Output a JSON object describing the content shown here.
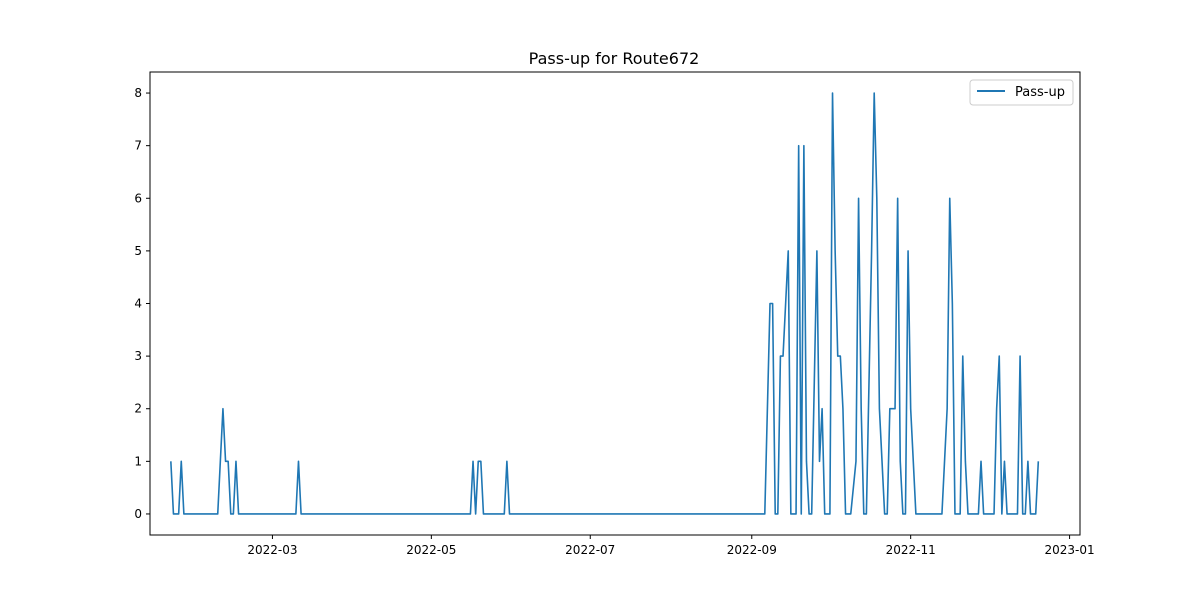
{
  "chart_data": {
    "type": "line",
    "title": "Pass-up for Route672",
    "xlabel": "",
    "ylabel": "",
    "x_axis_type": "date",
    "xlim": [
      "2022-01-13",
      "2023-01-05"
    ],
    "ylim": [
      -0.4,
      8.4
    ],
    "x_ticks": [
      "2022-03-01",
      "2022-05-01",
      "2022-07-01",
      "2022-09-01",
      "2022-11-01",
      "2023-01-01"
    ],
    "x_tick_labels": [
      "2022-03",
      "2022-05",
      "2022-07",
      "2022-09",
      "2022-11",
      "2023-01"
    ],
    "y_ticks": [
      0,
      1,
      2,
      3,
      4,
      5,
      6,
      7,
      8
    ],
    "grid": false,
    "legend": "upper right",
    "series": [
      {
        "name": "Pass-up",
        "color": "#1f77b4",
        "points": [
          [
            "2022-01-21",
            1
          ],
          [
            "2022-01-22",
            0
          ],
          [
            "2022-01-24",
            0
          ],
          [
            "2022-01-25",
            1
          ],
          [
            "2022-01-26",
            0
          ],
          [
            "2022-02-08",
            0
          ],
          [
            "2022-02-10",
            2
          ],
          [
            "2022-02-11",
            1
          ],
          [
            "2022-02-12",
            1
          ],
          [
            "2022-02-13",
            0
          ],
          [
            "2022-02-14",
            0
          ],
          [
            "2022-02-15",
            1
          ],
          [
            "2022-02-16",
            0
          ],
          [
            "2022-03-10",
            0
          ],
          [
            "2022-03-11",
            1
          ],
          [
            "2022-03-12",
            0
          ],
          [
            "2022-05-16",
            0
          ],
          [
            "2022-05-17",
            1
          ],
          [
            "2022-05-18",
            0
          ],
          [
            "2022-05-19",
            1
          ],
          [
            "2022-05-20",
            1
          ],
          [
            "2022-05-21",
            0
          ],
          [
            "2022-05-29",
            0
          ],
          [
            "2022-05-30",
            1
          ],
          [
            "2022-05-31",
            0
          ],
          [
            "2022-09-06",
            0
          ],
          [
            "2022-09-08",
            4
          ],
          [
            "2022-09-09",
            4
          ],
          [
            "2022-09-10",
            0
          ],
          [
            "2022-09-11",
            0
          ],
          [
            "2022-09-12",
            3
          ],
          [
            "2022-09-13",
            3
          ],
          [
            "2022-09-14",
            4
          ],
          [
            "2022-09-15",
            5
          ],
          [
            "2022-09-16",
            0
          ],
          [
            "2022-09-18",
            0
          ],
          [
            "2022-09-19",
            7
          ],
          [
            "2022-09-20",
            0
          ],
          [
            "2022-09-21",
            7
          ],
          [
            "2022-09-22",
            1
          ],
          [
            "2022-09-23",
            0
          ],
          [
            "2022-09-24",
            0
          ],
          [
            "2022-09-26",
            5
          ],
          [
            "2022-09-27",
            1
          ],
          [
            "2022-09-28",
            2
          ],
          [
            "2022-09-29",
            0
          ],
          [
            "2022-10-01",
            0
          ],
          [
            "2022-10-02",
            8
          ],
          [
            "2022-10-03",
            5
          ],
          [
            "2022-10-04",
            3
          ],
          [
            "2022-10-05",
            3
          ],
          [
            "2022-10-06",
            2
          ],
          [
            "2022-10-07",
            0
          ],
          [
            "2022-10-09",
            0
          ],
          [
            "2022-10-11",
            1
          ],
          [
            "2022-10-12",
            6
          ],
          [
            "2022-10-13",
            2
          ],
          [
            "2022-10-14",
            0
          ],
          [
            "2022-10-15",
            0
          ],
          [
            "2022-10-17",
            5
          ],
          [
            "2022-10-18",
            8
          ],
          [
            "2022-10-19",
            6
          ],
          [
            "2022-10-20",
            2
          ],
          [
            "2022-10-21",
            1
          ],
          [
            "2022-10-22",
            0
          ],
          [
            "2022-10-23",
            0
          ],
          [
            "2022-10-24",
            2
          ],
          [
            "2022-10-25",
            2
          ],
          [
            "2022-10-26",
            2
          ],
          [
            "2022-10-27",
            6
          ],
          [
            "2022-10-28",
            1
          ],
          [
            "2022-10-29",
            0
          ],
          [
            "2022-10-30",
            0
          ],
          [
            "2022-10-31",
            5
          ],
          [
            "2022-11-01",
            2
          ],
          [
            "2022-11-02",
            1
          ],
          [
            "2022-11-03",
            0
          ],
          [
            "2022-11-13",
            0
          ],
          [
            "2022-11-14",
            1
          ],
          [
            "2022-11-15",
            2
          ],
          [
            "2022-11-16",
            6
          ],
          [
            "2022-11-17",
            4
          ],
          [
            "2022-11-18",
            0
          ],
          [
            "2022-11-20",
            0
          ],
          [
            "2022-11-21",
            3
          ],
          [
            "2022-11-22",
            1
          ],
          [
            "2022-11-23",
            0
          ],
          [
            "2022-11-27",
            0
          ],
          [
            "2022-11-28",
            1
          ],
          [
            "2022-11-29",
            0
          ],
          [
            "2022-12-03",
            0
          ],
          [
            "2022-12-04",
            2
          ],
          [
            "2022-12-05",
            3
          ],
          [
            "2022-12-06",
            0
          ],
          [
            "2022-12-07",
            1
          ],
          [
            "2022-12-08",
            0
          ],
          [
            "2022-12-12",
            0
          ],
          [
            "2022-12-13",
            3
          ],
          [
            "2022-12-14",
            0
          ],
          [
            "2022-12-15",
            0
          ],
          [
            "2022-12-16",
            1
          ],
          [
            "2022-12-17",
            0
          ],
          [
            "2022-12-19",
            0
          ],
          [
            "2022-12-20",
            1
          ]
        ]
      }
    ]
  }
}
